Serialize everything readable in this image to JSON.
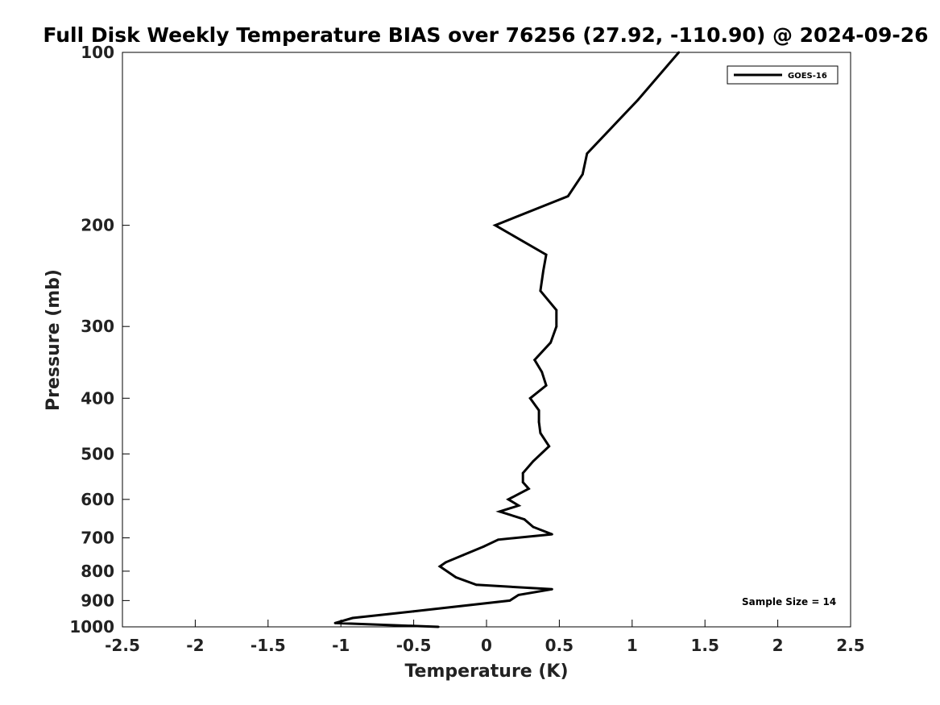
{
  "chart_data": {
    "type": "line",
    "title": "Full Disk Weekly Temperature BIAS over 76256 (27.92, -110.90) @ 2024-09-26",
    "xlabel": "Temperature (K)",
    "ylabel": "Pressure (mb)",
    "xlim": [
      -2.5,
      2.5
    ],
    "ylim": [
      1000,
      100
    ],
    "y_scale": "log",
    "y_reversed": true,
    "grid": false,
    "legend_position": "top-right",
    "x_ticks": [
      -2.5,
      -2,
      -1.5,
      -1,
      -0.5,
      0,
      0.5,
      1,
      1.5,
      2,
      2.5
    ],
    "x_tick_labels": [
      "-2.5",
      "-2",
      "-1.5",
      "-1",
      "-0.5",
      "0",
      "0.5",
      "1",
      "1.5",
      "2",
      "2.5"
    ],
    "y_ticks": [
      100,
      200,
      300,
      400,
      500,
      600,
      700,
      800,
      900,
      1000
    ],
    "y_tick_labels": [
      "100",
      "200",
      "300",
      "400",
      "500",
      "600",
      "700",
      "800",
      "900",
      "1000"
    ],
    "series": [
      {
        "name": "GOES-16",
        "color": "#000000",
        "points": [
          {
            "x": 1.32,
            "y": 100
          },
          {
            "x": 1.04,
            "y": 121
          },
          {
            "x": 0.69,
            "y": 150
          },
          {
            "x": 0.66,
            "y": 163
          },
          {
            "x": 0.56,
            "y": 178
          },
          {
            "x": 0.06,
            "y": 200
          },
          {
            "x": 0.41,
            "y": 225
          },
          {
            "x": 0.39,
            "y": 240
          },
          {
            "x": 0.37,
            "y": 260
          },
          {
            "x": 0.48,
            "y": 281
          },
          {
            "x": 0.48,
            "y": 300
          },
          {
            "x": 0.44,
            "y": 320
          },
          {
            "x": 0.33,
            "y": 343
          },
          {
            "x": 0.38,
            "y": 360
          },
          {
            "x": 0.41,
            "y": 380
          },
          {
            "x": 0.3,
            "y": 400
          },
          {
            "x": 0.36,
            "y": 420
          },
          {
            "x": 0.36,
            "y": 440
          },
          {
            "x": 0.37,
            "y": 460
          },
          {
            "x": 0.43,
            "y": 485
          },
          {
            "x": 0.32,
            "y": 515
          },
          {
            "x": 0.25,
            "y": 540
          },
          {
            "x": 0.25,
            "y": 560
          },
          {
            "x": 0.29,
            "y": 575
          },
          {
            "x": 0.15,
            "y": 600
          },
          {
            "x": 0.22,
            "y": 615
          },
          {
            "x": 0.09,
            "y": 630
          },
          {
            "x": 0.26,
            "y": 650
          },
          {
            "x": 0.32,
            "y": 670
          },
          {
            "x": 0.45,
            "y": 690
          },
          {
            "x": 0.08,
            "y": 705
          },
          {
            "x": -0.02,
            "y": 725
          },
          {
            "x": -0.16,
            "y": 750
          },
          {
            "x": -0.28,
            "y": 772
          },
          {
            "x": -0.32,
            "y": 785
          },
          {
            "x": -0.21,
            "y": 820
          },
          {
            "x": -0.07,
            "y": 845
          },
          {
            "x": 0.45,
            "y": 860
          },
          {
            "x": 0.22,
            "y": 880
          },
          {
            "x": 0.16,
            "y": 900
          },
          {
            "x": -0.5,
            "y": 940
          },
          {
            "x": -0.92,
            "y": 965
          },
          {
            "x": -1.04,
            "y": 985
          },
          {
            "x": -0.33,
            "y": 1000
          }
        ]
      }
    ],
    "annotation": "Sample Size = 14"
  }
}
